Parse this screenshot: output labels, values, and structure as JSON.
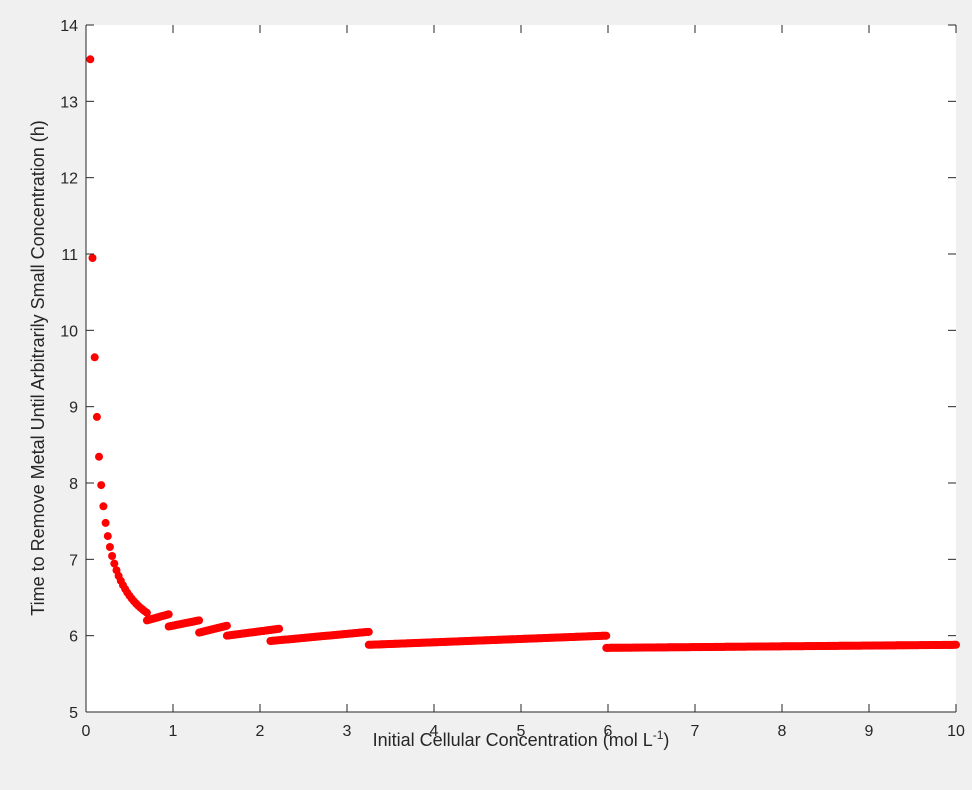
{
  "chart_data": {
    "type": "scatter",
    "xlabel_main": "Initial Cellular Concentration (mol L",
    "xlabel_sup": "-1",
    "xlabel_end": ")",
    "ylabel": "Time to Remove Metal Until Arbitrarily Small Concentration (h)",
    "xlim": [
      0,
      10
    ],
    "ylim": [
      5,
      14
    ],
    "x_ticks": [
      0,
      1,
      2,
      3,
      4,
      5,
      6,
      7,
      8,
      9,
      10
    ],
    "y_ticks": [
      5,
      6,
      7,
      8,
      9,
      10,
      11,
      12,
      13,
      14
    ],
    "x_tick_labels": [
      "0",
      "1",
      "2",
      "3",
      "4",
      "5",
      "6",
      "7",
      "8",
      "9",
      "10"
    ],
    "y_tick_labels": [
      "5",
      "6",
      "7",
      "8",
      "9",
      "10",
      "11",
      "12",
      "13",
      "14"
    ],
    "grid": false,
    "marker_color": "#ff0000",
    "segments": [
      {
        "x_start": 0.05,
        "x_end": 0.7,
        "y_start": 13.55,
        "y_end": 6.3,
        "shape": "hyperbolic"
      },
      {
        "x_start": 0.7,
        "x_end": 0.95,
        "y_start": 6.2,
        "y_end": 6.28,
        "shape": "linear"
      },
      {
        "x_start": 0.95,
        "x_end": 1.3,
        "y_start": 6.12,
        "y_end": 6.2,
        "shape": "linear"
      },
      {
        "x_start": 1.3,
        "x_end": 1.62,
        "y_start": 6.04,
        "y_end": 6.13,
        "shape": "linear"
      },
      {
        "x_start": 1.62,
        "x_end": 2.22,
        "y_start": 6.0,
        "y_end": 6.09,
        "shape": "linear"
      },
      {
        "x_start": 2.12,
        "x_end": 3.25,
        "y_start": 5.93,
        "y_end": 6.05,
        "shape": "linear"
      },
      {
        "x_start": 3.25,
        "x_end": 5.98,
        "y_start": 5.88,
        "y_end": 6.0,
        "shape": "linear"
      },
      {
        "x_start": 5.98,
        "x_end": 10.0,
        "y_start": 5.84,
        "y_end": 5.88,
        "shape": "linear"
      }
    ]
  }
}
